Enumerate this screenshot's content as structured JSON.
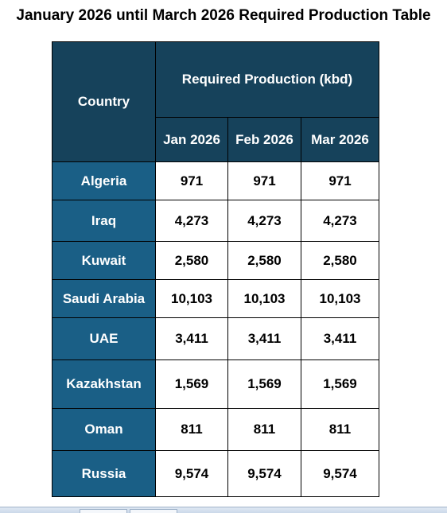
{
  "title": "January 2026 until March 2026 Required Production Table",
  "table": {
    "country_header": "Country",
    "group_header": "Required Production (kbd)",
    "months": [
      "Jan 2026",
      "Feb 2026",
      "Mar 2026"
    ],
    "rows": [
      {
        "country": "Algeria",
        "values": [
          "971",
          "971",
          "971"
        ]
      },
      {
        "country": "Iraq",
        "values": [
          "4,273",
          "4,273",
          "4,273"
        ]
      },
      {
        "country": "Kuwait",
        "values": [
          "2,580",
          "2,580",
          "2,580"
        ]
      },
      {
        "country": "Saudi Arabia",
        "values": [
          "10,103",
          "10,103",
          "10,103"
        ]
      },
      {
        "country": "UAE",
        "values": [
          "3,411",
          "3,411",
          "3,411"
        ]
      },
      {
        "country": "Kazakhstan",
        "values": [
          "1,569",
          "1,569",
          "1,569"
        ]
      },
      {
        "country": "Oman",
        "values": [
          "811",
          "811",
          "811"
        ]
      },
      {
        "country": "Russia",
        "values": [
          "9,574",
          "9,574",
          "9,574"
        ]
      }
    ]
  }
}
